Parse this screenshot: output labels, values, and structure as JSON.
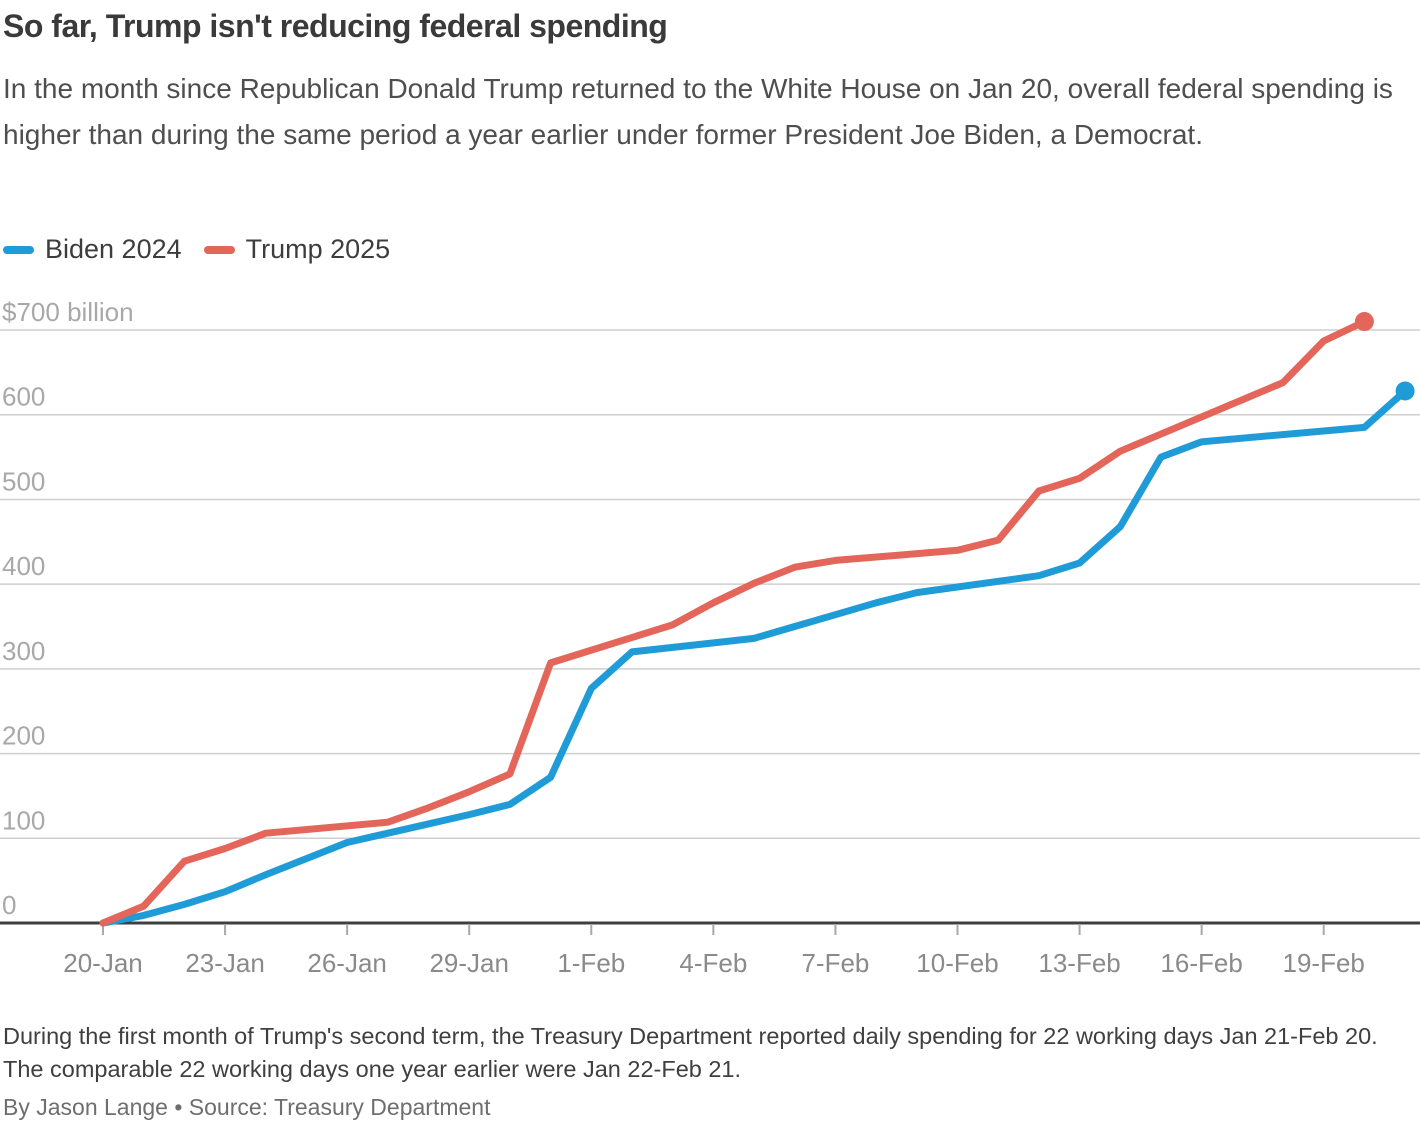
{
  "header": {
    "title": "So far, Trump isn't reducing federal spending",
    "subtitle": "In the month since Republican Donald Trump returned to the White House on Jan 20, overall federal spending is higher than during the same period a year earlier under former President Joe Biden, a Democrat."
  },
  "footer": {
    "note": "During the first month of Trump's second term, the Treasury Department reported daily spending for 22 working days Jan 21-Feb 20. The comparable 22 working days one year earlier were Jan 22-Feb 21.",
    "byline": "By Jason Lange • Source: Treasury Department"
  },
  "chart_data": {
    "type": "line",
    "title": "So far, Trump isn't reducing federal spending",
    "unit": "billions of U.S. dollars, cumulative",
    "grid": true,
    "legend_position": "top-left",
    "x_axis": {
      "day_zero_label": "20-Jan",
      "last_day_label": "21-Feb",
      "tick_labels": [
        "20-Jan",
        "23-Jan",
        "26-Jan",
        "29-Jan",
        "1-Feb",
        "4-Feb",
        "7-Feb",
        "10-Feb",
        "13-Feb",
        "16-Feb",
        "19-Feb"
      ],
      "tick_day_offsets": [
        0,
        3,
        6,
        9,
        12,
        15,
        18,
        21,
        24,
        27,
        30
      ]
    },
    "y_axis": {
      "min": 0,
      "max": 700,
      "interval": 100,
      "tick_labels": [
        "$700 billion",
        "600",
        "500",
        "400",
        "300",
        "200",
        "100",
        "0"
      ],
      "tick_values": [
        700,
        600,
        500,
        400,
        300,
        200,
        100,
        0
      ]
    },
    "colors": {
      "grid": "#cfcfcf",
      "baseline": "#3f3f3f",
      "tick": "#a9a9a9",
      "y_label": "#a8a8a8",
      "x_label": "#8a8a8a"
    },
    "series": [
      {
        "name": "Biden 2024",
        "color": "#1f9cd8",
        "end_dot": true,
        "points_day_value": [
          [
            0,
            0
          ],
          [
            1,
            9
          ],
          [
            2,
            22
          ],
          [
            3,
            37
          ],
          [
            4,
            57
          ],
          [
            5,
            76
          ],
          [
            6,
            95
          ],
          [
            9,
            128
          ],
          [
            10,
            140
          ],
          [
            11,
            172
          ],
          [
            12,
            277
          ],
          [
            13,
            320
          ],
          [
            16,
            336
          ],
          [
            17,
            350
          ],
          [
            18,
            364
          ],
          [
            19,
            378
          ],
          [
            20,
            390
          ],
          [
            23,
            410
          ],
          [
            24,
            425
          ],
          [
            25,
            468
          ],
          [
            26,
            550
          ],
          [
            27,
            568
          ],
          [
            31,
            585
          ],
          [
            32,
            628
          ]
        ]
      },
      {
        "name": "Trump 2025",
        "color": "#e4655a",
        "end_dot": true,
        "points_day_value": [
          [
            0,
            0
          ],
          [
            1,
            20
          ],
          [
            2,
            73
          ],
          [
            3,
            88
          ],
          [
            4,
            106
          ],
          [
            7,
            119
          ],
          [
            8,
            136
          ],
          [
            9,
            155
          ],
          [
            10,
            176
          ],
          [
            11,
            307
          ],
          [
            14,
            352
          ],
          [
            15,
            378
          ],
          [
            16,
            401
          ],
          [
            17,
            420
          ],
          [
            18,
            428
          ],
          [
            21,
            440
          ],
          [
            22,
            452
          ],
          [
            23,
            510
          ],
          [
            24,
            525
          ],
          [
            25,
            557
          ],
          [
            29,
            638
          ],
          [
            30,
            687
          ],
          [
            31,
            710
          ]
        ]
      }
    ]
  }
}
